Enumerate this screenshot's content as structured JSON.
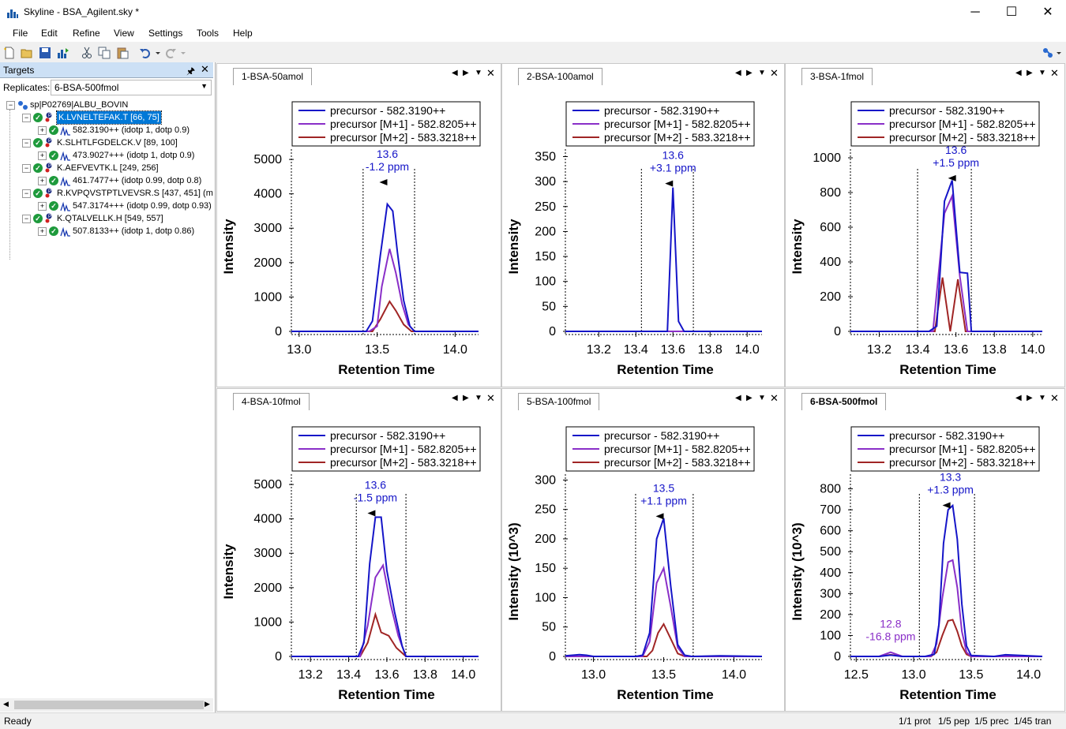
{
  "window": {
    "title": "Skyline - BSA_Agilent.sky *",
    "minimize": "─",
    "maximize": "☐",
    "close": "✕"
  },
  "menu": [
    "File",
    "Edit",
    "Refine",
    "View",
    "Settings",
    "Tools",
    "Help"
  ],
  "targets_panel": {
    "title": "Targets",
    "pin": "🖈",
    "close": "✕",
    "replicates_label": "Replicates:",
    "replicates_value": "6-BSA-500fmol",
    "tree": [
      {
        "label": "sp|P02769|ALBU_BOVIN",
        "level": 0,
        "type": "protein"
      },
      {
        "label": "K.LVNELTEFAK.T [66, 75]",
        "level": 1,
        "type": "peptide",
        "selected": true
      },
      {
        "label": "582.3190++ (idotp 1, dotp 0.9)",
        "level": 2,
        "type": "precursor"
      },
      {
        "label": "K.SLHTLFGDELCK.V [89, 100]",
        "level": 1,
        "type": "peptide"
      },
      {
        "label": "473.9027+++ (idotp 1, dotp 0.9)",
        "level": 2,
        "type": "precursor"
      },
      {
        "label": "K.AEFVEVTK.L [249, 256]",
        "level": 1,
        "type": "peptide"
      },
      {
        "label": "461.7477++ (idotp 0.99, dotp 0.8)",
        "level": 2,
        "type": "precursor"
      },
      {
        "label": "R.KVPQVSTPTLVEVSR.S [437, 451] (m",
        "level": 1,
        "type": "peptide"
      },
      {
        "label": "547.3174+++ (idotp 0.99, dotp 0.93)",
        "level": 2,
        "type": "precursor"
      },
      {
        "label": "K.QTALVELLK.H [549, 557]",
        "level": 1,
        "type": "peptide"
      },
      {
        "label": "507.8133++ (idotp 1, dotp 0.86)",
        "level": 2,
        "type": "precursor"
      }
    ]
  },
  "status": {
    "left": "Ready",
    "right": [
      "1/1 prot",
      "1/5 pep",
      "1/5 prec",
      "1/45 tran"
    ]
  },
  "colors": {
    "precursor": "#1515c8",
    "m1": "#8a2fc8",
    "m2": "#a02525"
  },
  "legend": [
    "precursor - 582.3190++",
    "precursor [M+1] - 582.8205++",
    "precursor [M+2] - 583.3218++"
  ],
  "xlabel": "Retention Time",
  "chart_data": [
    {
      "type": "line",
      "title": "1-BSA-50amol",
      "ylabel": "Intensity",
      "xlim": [
        12.95,
        14.15
      ],
      "ylim": [
        0,
        5300
      ],
      "xticks": [
        13.0,
        13.5,
        14.0
      ],
      "xtick_labels": [
        "13.0",
        "13.5",
        "14.0"
      ],
      "yticks": [
        0,
        1000,
        2000,
        3000,
        4000,
        5000
      ],
      "ytick_labels": [
        "0",
        "1000",
        "2000",
        "3000",
        "4000",
        "5000"
      ],
      "boundaries": [
        13.41,
        13.74
      ],
      "series": [
        {
          "name": "precursor - 582.3190++",
          "x": [
            12.95,
            13.43,
            13.47,
            13.52,
            13.565,
            13.6,
            13.63,
            13.67,
            13.71,
            13.74,
            14.15
          ],
          "y": [
            0,
            0,
            300,
            2200,
            3700,
            3500,
            2300,
            900,
            150,
            0,
            0
          ]
        },
        {
          "name": "precursor [M+1] - 582.8205++",
          "x": [
            12.95,
            13.45,
            13.5,
            13.53,
            13.58,
            13.62,
            13.66,
            13.7,
            13.74,
            14.15
          ],
          "y": [
            0,
            0,
            150,
            1300,
            2400,
            1700,
            800,
            200,
            0,
            0
          ]
        },
        {
          "name": "precursor [M+2] - 583.3218++",
          "x": [
            12.95,
            13.47,
            13.52,
            13.58,
            13.62,
            13.67,
            13.72,
            14.15
          ],
          "y": [
            0,
            0,
            350,
            870,
            600,
            200,
            0,
            0
          ]
        }
      ],
      "annotations": [
        {
          "x": 13.565,
          "y": 4450,
          "lines": [
            "13.6",
            "-1.2 ppm"
          ],
          "color": "#1515c8",
          "arrow": true
        }
      ]
    },
    {
      "type": "line",
      "title": "2-BSA-100amol",
      "ylabel": "Intensity",
      "xlim": [
        13.02,
        14.08
      ],
      "ylim": [
        0,
        365
      ],
      "xticks": [
        13.2,
        13.4,
        13.6,
        13.8,
        14.0
      ],
      "xtick_labels": [
        "13.2",
        "13.4",
        "13.6",
        "13.8",
        "14.0"
      ],
      "yticks": [
        0,
        50,
        100,
        150,
        200,
        250,
        300,
        350
      ],
      "ytick_labels": [
        "0",
        "50",
        "100",
        "150",
        "200",
        "250",
        "300",
        "350"
      ],
      "boundaries": [
        13.43,
        13.71
      ],
      "series": [
        {
          "name": "precursor - 582.3190++",
          "x": [
            13.02,
            13.57,
            13.6,
            13.63,
            13.66,
            14.08
          ],
          "y": [
            0,
            0,
            288,
            20,
            0,
            0
          ]
        },
        {
          "name": "precursor [M+1] - 582.8205++",
          "x": [
            13.02,
            14.08
          ],
          "y": [
            0,
            0
          ]
        },
        {
          "name": "precursor [M+2] - 583.3218++",
          "x": [
            13.02,
            14.08
          ],
          "y": [
            0,
            0
          ]
        }
      ],
      "annotations": [
        {
          "x": 13.6,
          "y": 304,
          "lines": [
            "13.6",
            "+3.1 ppm"
          ],
          "color": "#1515c8",
          "arrow": true
        }
      ]
    },
    {
      "type": "line",
      "title": "3-BSA-1fmol",
      "ylabel": "Intensity",
      "xlim": [
        13.05,
        14.05
      ],
      "ylim": [
        0,
        1050
      ],
      "xticks": [
        13.2,
        13.4,
        13.6,
        13.8,
        14.0
      ],
      "xtick_labels": [
        "13.2",
        "13.4",
        "13.6",
        "13.8",
        "14.0"
      ],
      "yticks": [
        0,
        200,
        400,
        600,
        800,
        1000
      ],
      "ytick_labels": [
        "0",
        "200",
        "400",
        "600",
        "800",
        "1000"
      ],
      "boundaries": [
        13.4,
        13.68
      ],
      "series": [
        {
          "name": "precursor - 582.3190++",
          "x": [
            13.05,
            13.46,
            13.5,
            13.54,
            13.58,
            13.62,
            13.66,
            13.68,
            14.05
          ],
          "y": [
            0,
            0,
            30,
            750,
            870,
            340,
            335,
            0,
            0
          ]
        },
        {
          "name": "precursor [M+1] - 582.8205++",
          "x": [
            13.05,
            13.48,
            13.54,
            13.58,
            13.62,
            13.66,
            14.05
          ],
          "y": [
            0,
            0,
            680,
            780,
            320,
            0,
            0
          ]
        },
        {
          "name": "precursor [M+2] - 583.3218++",
          "x": [
            13.05,
            13.49,
            13.53,
            13.57,
            13.61,
            13.65,
            14.05
          ],
          "y": [
            0,
            0,
            310,
            0,
            300,
            0,
            0
          ]
        }
      ],
      "annotations": [
        {
          "x": 13.6,
          "y": 905,
          "lines": [
            "13.6",
            "+1.5 ppm"
          ],
          "color": "#1515c8",
          "arrow": true
        }
      ]
    },
    {
      "type": "line",
      "title": "4-BSA-10fmol",
      "ylabel": "Intensity",
      "xlim": [
        13.1,
        14.08
      ],
      "ylim": [
        0,
        5300
      ],
      "xticks": [
        13.2,
        13.4,
        13.6,
        13.8,
        14.0
      ],
      "xtick_labels": [
        "13.2",
        "13.4",
        "13.6",
        "13.8",
        "14.0"
      ],
      "yticks": [
        0,
        1000,
        2000,
        3000,
        4000,
        5000
      ],
      "ytick_labels": [
        "0",
        "1000",
        "2000",
        "3000",
        "4000",
        "5000"
      ],
      "boundaries": [
        13.44,
        13.7
      ],
      "series": [
        {
          "name": "precursor - 582.3190++",
          "x": [
            13.1,
            13.45,
            13.48,
            13.51,
            13.54,
            13.57,
            13.6,
            13.64,
            13.68,
            13.7,
            14.08
          ],
          "y": [
            0,
            0,
            400,
            2700,
            4050,
            4050,
            2500,
            1300,
            300,
            0,
            0
          ]
        },
        {
          "name": "precursor [M+1] - 582.8205++",
          "x": [
            13.1,
            13.46,
            13.5,
            13.54,
            13.58,
            13.62,
            13.66,
            13.7,
            14.08
          ],
          "y": [
            0,
            0,
            900,
            2300,
            2650,
            1500,
            600,
            0,
            0
          ]
        },
        {
          "name": "precursor [M+2] - 583.3218++",
          "x": [
            13.1,
            13.46,
            13.5,
            13.54,
            13.57,
            13.61,
            13.65,
            13.7,
            14.08
          ],
          "y": [
            0,
            0,
            400,
            1220,
            700,
            600,
            250,
            0,
            0
          ]
        }
      ],
      "annotations": [
        {
          "x": 13.54,
          "y": 4280,
          "lines": [
            "13.6",
            "-1.5 ppm"
          ],
          "color": "#1515c8",
          "arrow": true
        }
      ]
    },
    {
      "type": "line",
      "title": "5-BSA-100fmol",
      "ylabel": "Intensity (10^3)",
      "xlim": [
        12.8,
        14.2
      ],
      "ylim": [
        0,
        310
      ],
      "xticks": [
        13.0,
        13.5,
        14.0
      ],
      "xtick_labels": [
        "13.0",
        "13.5",
        "14.0"
      ],
      "yticks": [
        0,
        50,
        100,
        150,
        200,
        250,
        300
      ],
      "ytick_labels": [
        "0",
        "50",
        "100",
        "150",
        "200",
        "250",
        "300"
      ],
      "boundaries": [
        13.3,
        13.71
      ],
      "series": [
        {
          "name": "precursor - 582.3190++",
          "x": [
            12.8,
            12.9,
            12.95,
            13.0,
            13.3,
            13.35,
            13.4,
            13.45,
            13.5,
            13.55,
            13.6,
            13.65,
            13.7,
            13.9,
            14.2
          ],
          "y": [
            1,
            3,
            2,
            0,
            0,
            2,
            40,
            200,
            235,
            120,
            20,
            2,
            0,
            1,
            0
          ]
        },
        {
          "name": "precursor [M+1] - 582.8205++",
          "x": [
            12.8,
            13.35,
            13.4,
            13.45,
            13.5,
            13.55,
            13.6,
            13.65,
            14.2
          ],
          "y": [
            0,
            0,
            25,
            125,
            150,
            85,
            15,
            0,
            0
          ]
        },
        {
          "name": "precursor [M+2] - 583.3218++",
          "x": [
            12.8,
            13.38,
            13.42,
            13.46,
            13.5,
            13.55,
            13.6,
            13.65,
            14.2
          ],
          "y": [
            0,
            0,
            10,
            40,
            55,
            30,
            5,
            0,
            0
          ]
        }
      ],
      "annotations": [
        {
          "x": 13.5,
          "y": 245,
          "lines": [
            "13.5",
            "+1.1 ppm"
          ],
          "color": "#1515c8",
          "arrow": true
        }
      ]
    },
    {
      "type": "line",
      "title": "6-BSA-500fmol",
      "ylabel": "Intensity (10^3)",
      "xlim": [
        12.45,
        14.12
      ],
      "ylim": [
        0,
        870
      ],
      "xticks": [
        12.5,
        13.0,
        13.5,
        14.0
      ],
      "xtick_labels": [
        "12.5",
        "13.0",
        "13.5",
        "14.0"
      ],
      "yticks": [
        0,
        100,
        200,
        300,
        400,
        500,
        600,
        700,
        800
      ],
      "ytick_labels": [
        "0",
        "100",
        "200",
        "300",
        "400",
        "500",
        "600",
        "700",
        "800"
      ],
      "boundaries": [
        13.05,
        13.53
      ],
      "series": [
        {
          "name": "precursor - 582.3190++",
          "x": [
            12.45,
            12.7,
            12.8,
            12.9,
            13.1,
            13.18,
            13.22,
            13.26,
            13.3,
            13.34,
            13.38,
            13.42,
            13.46,
            13.5,
            13.7,
            13.8,
            14.12
          ],
          "y": [
            0,
            0,
            6,
            0,
            0,
            10,
            150,
            540,
            700,
            720,
            560,
            250,
            50,
            5,
            0,
            8,
            0
          ]
        },
        {
          "name": "precursor [M+1] - 582.8205++",
          "x": [
            12.45,
            12.7,
            12.8,
            12.9,
            13.15,
            13.2,
            13.25,
            13.3,
            13.34,
            13.38,
            13.42,
            13.46,
            13.5,
            14.12
          ],
          "y": [
            0,
            0,
            20,
            0,
            0,
            60,
            280,
            450,
            460,
            330,
            120,
            20,
            0,
            0
          ]
        },
        {
          "name": "precursor [M+2] - 583.3218++",
          "x": [
            12.45,
            12.7,
            12.8,
            12.9,
            13.15,
            13.2,
            13.25,
            13.3,
            13.34,
            13.38,
            13.42,
            13.46,
            13.5,
            14.12
          ],
          "y": [
            0,
            0,
            8,
            0,
            0,
            20,
            100,
            170,
            175,
            120,
            50,
            10,
            0,
            0
          ]
        }
      ],
      "annotations": [
        {
          "x": 13.32,
          "y": 740,
          "lines": [
            "13.3",
            "+1.3 ppm"
          ],
          "color": "#1515c8",
          "arrow": true
        },
        {
          "x": 12.8,
          "y": 40,
          "lines": [
            "12.8",
            "-16.8 ppm"
          ],
          "color": "#8a2fc8",
          "arrow": false
        }
      ]
    }
  ]
}
